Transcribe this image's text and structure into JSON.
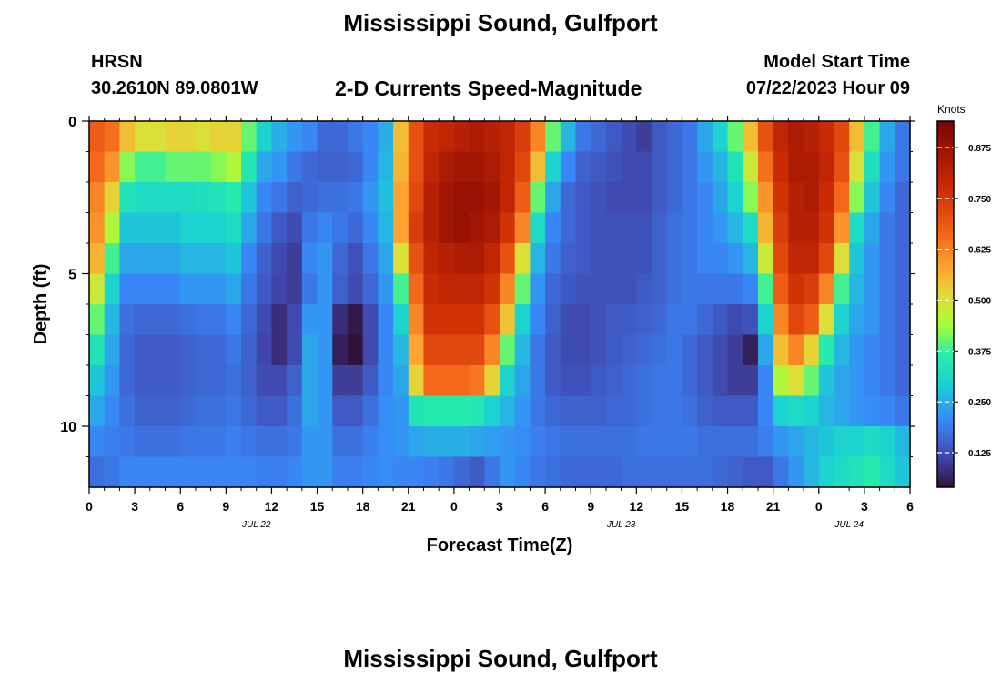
{
  "header": {
    "title": "Mississippi Sound, Gulfport",
    "station_id": "HRSN",
    "coordinates": "30.2610N  89.0801W",
    "subtitle": "2-D Currents Speed-Magnitude",
    "model_start_label": "Model Start Time",
    "model_start_value": "07/22/2023 Hour 09"
  },
  "footer": {
    "title": "Mississippi Sound, Gulfport"
  },
  "chart_data": {
    "type": "heatmap",
    "xlabel": "Forecast Time(Z)",
    "ylabel": "Depth (ft)",
    "x_ticks": [
      "0",
      "3",
      "6",
      "9",
      "12",
      "15",
      "18",
      "21",
      "0",
      "3",
      "6",
      "9",
      "12",
      "15",
      "18",
      "21",
      "0",
      "3",
      "6"
    ],
    "date_labels": [
      {
        "label": "JUL 22",
        "hour": 11
      },
      {
        "label": "JUL 23",
        "hour": 35
      },
      {
        "label": "JUL 24",
        "hour": 50
      }
    ],
    "y_ticks": [
      "0",
      "5",
      "10"
    ],
    "xlim_hours": [
      0,
      54
    ],
    "ylim_ft": [
      0,
      12
    ],
    "colorbar": {
      "units": "Knots",
      "ticks": [
        "0.125",
        "0.250",
        "0.375",
        "0.500",
        "0.625",
        "0.750",
        "0.875"
      ],
      "range": [
        0.04,
        0.94
      ]
    },
    "x_hours": [
      0,
      1,
      2,
      3,
      4,
      5,
      6,
      7,
      8,
      9,
      10,
      11,
      12,
      13,
      14,
      15,
      16,
      17,
      18,
      19,
      20,
      21,
      22,
      23,
      24,
      25,
      26,
      27,
      28,
      29,
      30,
      31,
      32,
      33,
      34,
      35,
      36,
      37,
      38,
      39,
      40,
      41,
      42,
      43,
      44,
      45,
      46,
      47,
      48,
      49,
      50,
      51,
      52,
      53
    ],
    "depth_bins_ft": [
      0.5,
      1.5,
      2.5,
      3.5,
      4.5,
      5.5,
      6.5,
      7.5,
      8.5,
      9.5,
      10.5,
      11.5
    ],
    "speed_knots": [
      [
        0.68,
        0.65,
        0.55,
        0.5,
        0.5,
        0.52,
        0.52,
        0.5,
        0.52,
        0.52,
        0.4,
        0.3,
        0.25,
        0.22,
        0.2,
        0.16,
        0.16,
        0.18,
        0.2,
        0.25,
        0.55,
        0.7,
        0.78,
        0.8,
        0.82,
        0.84,
        0.82,
        0.8,
        0.74,
        0.62,
        0.4,
        0.26,
        0.18,
        0.16,
        0.14,
        0.12,
        0.1,
        0.14,
        0.16,
        0.18,
        0.24,
        0.3,
        0.4,
        0.55,
        0.7,
        0.8,
        0.84,
        0.82,
        0.78,
        0.72,
        0.55,
        0.38,
        0.24,
        0.18
      ],
      [
        0.66,
        0.6,
        0.42,
        0.38,
        0.38,
        0.4,
        0.4,
        0.4,
        0.42,
        0.45,
        0.35,
        0.24,
        0.22,
        0.18,
        0.16,
        0.15,
        0.15,
        0.16,
        0.2,
        0.26,
        0.56,
        0.7,
        0.8,
        0.84,
        0.86,
        0.86,
        0.84,
        0.8,
        0.72,
        0.55,
        0.3,
        0.2,
        0.15,
        0.14,
        0.13,
        0.12,
        0.12,
        0.14,
        0.16,
        0.18,
        0.22,
        0.26,
        0.34,
        0.48,
        0.65,
        0.78,
        0.84,
        0.84,
        0.8,
        0.7,
        0.5,
        0.33,
        0.22,
        0.18
      ],
      [
        0.62,
        0.52,
        0.34,
        0.32,
        0.32,
        0.32,
        0.32,
        0.33,
        0.34,
        0.36,
        0.28,
        0.2,
        0.18,
        0.15,
        0.16,
        0.17,
        0.17,
        0.18,
        0.22,
        0.27,
        0.58,
        0.72,
        0.82,
        0.86,
        0.88,
        0.88,
        0.86,
        0.8,
        0.68,
        0.4,
        0.24,
        0.16,
        0.14,
        0.13,
        0.12,
        0.12,
        0.12,
        0.14,
        0.16,
        0.18,
        0.2,
        0.24,
        0.3,
        0.42,
        0.6,
        0.76,
        0.82,
        0.84,
        0.78,
        0.66,
        0.42,
        0.28,
        0.2,
        0.16
      ],
      [
        0.6,
        0.45,
        0.28,
        0.28,
        0.28,
        0.28,
        0.3,
        0.3,
        0.3,
        0.32,
        0.24,
        0.18,
        0.14,
        0.12,
        0.18,
        0.2,
        0.18,
        0.16,
        0.2,
        0.26,
        0.58,
        0.74,
        0.82,
        0.86,
        0.88,
        0.86,
        0.84,
        0.76,
        0.62,
        0.32,
        0.2,
        0.16,
        0.14,
        0.13,
        0.13,
        0.13,
        0.13,
        0.15,
        0.17,
        0.18,
        0.2,
        0.22,
        0.26,
        0.32,
        0.56,
        0.74,
        0.82,
        0.82,
        0.76,
        0.6,
        0.32,
        0.24,
        0.18,
        0.16
      ],
      [
        0.56,
        0.38,
        0.24,
        0.24,
        0.24,
        0.24,
        0.26,
        0.26,
        0.26,
        0.28,
        0.2,
        0.15,
        0.12,
        0.1,
        0.2,
        0.22,
        0.16,
        0.13,
        0.18,
        0.24,
        0.5,
        0.7,
        0.8,
        0.82,
        0.84,
        0.84,
        0.8,
        0.7,
        0.5,
        0.26,
        0.18,
        0.15,
        0.14,
        0.13,
        0.13,
        0.13,
        0.13,
        0.15,
        0.17,
        0.18,
        0.2,
        0.2,
        0.22,
        0.26,
        0.48,
        0.72,
        0.8,
        0.8,
        0.72,
        0.5,
        0.28,
        0.22,
        0.18,
        0.16
      ],
      [
        0.48,
        0.3,
        0.2,
        0.2,
        0.2,
        0.2,
        0.22,
        0.22,
        0.22,
        0.24,
        0.18,
        0.14,
        0.11,
        0.1,
        0.18,
        0.22,
        0.15,
        0.12,
        0.16,
        0.22,
        0.38,
        0.66,
        0.78,
        0.8,
        0.8,
        0.8,
        0.76,
        0.62,
        0.4,
        0.22,
        0.16,
        0.14,
        0.13,
        0.13,
        0.13,
        0.13,
        0.14,
        0.15,
        0.17,
        0.18,
        0.18,
        0.18,
        0.18,
        0.2,
        0.38,
        0.68,
        0.76,
        0.74,
        0.62,
        0.38,
        0.26,
        0.22,
        0.18,
        0.16
      ],
      [
        0.4,
        0.26,
        0.17,
        0.16,
        0.16,
        0.16,
        0.17,
        0.18,
        0.18,
        0.2,
        0.16,
        0.12,
        0.08,
        0.12,
        0.22,
        0.22,
        0.08,
        0.05,
        0.12,
        0.2,
        0.3,
        0.62,
        0.76,
        0.76,
        0.76,
        0.76,
        0.7,
        0.54,
        0.3,
        0.2,
        0.15,
        0.12,
        0.12,
        0.13,
        0.14,
        0.14,
        0.15,
        0.16,
        0.18,
        0.18,
        0.16,
        0.14,
        0.12,
        0.13,
        0.3,
        0.62,
        0.72,
        0.68,
        0.5,
        0.3,
        0.24,
        0.22,
        0.18,
        0.16
      ],
      [
        0.34,
        0.24,
        0.16,
        0.14,
        0.14,
        0.14,
        0.15,
        0.16,
        0.16,
        0.18,
        0.15,
        0.11,
        0.08,
        0.12,
        0.24,
        0.22,
        0.06,
        0.04,
        0.12,
        0.2,
        0.26,
        0.58,
        0.72,
        0.72,
        0.72,
        0.72,
        0.62,
        0.4,
        0.26,
        0.18,
        0.14,
        0.12,
        0.12,
        0.13,
        0.14,
        0.15,
        0.16,
        0.17,
        0.18,
        0.16,
        0.14,
        0.12,
        0.1,
        0.06,
        0.24,
        0.55,
        0.62,
        0.52,
        0.36,
        0.26,
        0.22,
        0.2,
        0.18,
        0.16
      ],
      [
        0.28,
        0.22,
        0.16,
        0.14,
        0.14,
        0.14,
        0.15,
        0.16,
        0.16,
        0.17,
        0.15,
        0.12,
        0.12,
        0.15,
        0.24,
        0.22,
        0.1,
        0.1,
        0.14,
        0.2,
        0.24,
        0.52,
        0.66,
        0.66,
        0.66,
        0.64,
        0.52,
        0.3,
        0.24,
        0.18,
        0.14,
        0.13,
        0.13,
        0.14,
        0.15,
        0.16,
        0.17,
        0.18,
        0.18,
        0.16,
        0.14,
        0.12,
        0.1,
        0.1,
        0.2,
        0.45,
        0.5,
        0.4,
        0.28,
        0.24,
        0.22,
        0.2,
        0.18,
        0.16
      ],
      [
        0.24,
        0.2,
        0.17,
        0.15,
        0.15,
        0.15,
        0.16,
        0.17,
        0.17,
        0.18,
        0.16,
        0.14,
        0.14,
        0.17,
        0.24,
        0.22,
        0.14,
        0.14,
        0.17,
        0.21,
        0.22,
        0.34,
        0.36,
        0.36,
        0.36,
        0.35,
        0.3,
        0.26,
        0.22,
        0.18,
        0.16,
        0.15,
        0.15,
        0.15,
        0.16,
        0.16,
        0.17,
        0.18,
        0.18,
        0.17,
        0.15,
        0.14,
        0.14,
        0.14,
        0.2,
        0.3,
        0.32,
        0.3,
        0.26,
        0.24,
        0.22,
        0.21,
        0.2,
        0.18
      ],
      [
        0.2,
        0.19,
        0.18,
        0.17,
        0.17,
        0.17,
        0.18,
        0.18,
        0.18,
        0.19,
        0.18,
        0.17,
        0.17,
        0.18,
        0.22,
        0.22,
        0.17,
        0.17,
        0.19,
        0.21,
        0.22,
        0.24,
        0.25,
        0.25,
        0.25,
        0.24,
        0.23,
        0.22,
        0.21,
        0.19,
        0.18,
        0.17,
        0.17,
        0.17,
        0.17,
        0.17,
        0.18,
        0.18,
        0.18,
        0.18,
        0.17,
        0.17,
        0.17,
        0.17,
        0.19,
        0.22,
        0.24,
        0.26,
        0.28,
        0.3,
        0.3,
        0.32,
        0.3,
        0.26
      ],
      [
        0.17,
        0.18,
        0.2,
        0.2,
        0.2,
        0.2,
        0.2,
        0.2,
        0.2,
        0.2,
        0.2,
        0.19,
        0.19,
        0.2,
        0.22,
        0.22,
        0.19,
        0.19,
        0.2,
        0.21,
        0.2,
        0.2,
        0.19,
        0.18,
        0.16,
        0.14,
        0.18,
        0.22,
        0.2,
        0.18,
        0.17,
        0.16,
        0.16,
        0.16,
        0.16,
        0.17,
        0.17,
        0.17,
        0.17,
        0.17,
        0.17,
        0.16,
        0.15,
        0.14,
        0.14,
        0.18,
        0.22,
        0.26,
        0.3,
        0.32,
        0.34,
        0.36,
        0.32,
        0.28
      ]
    ]
  }
}
